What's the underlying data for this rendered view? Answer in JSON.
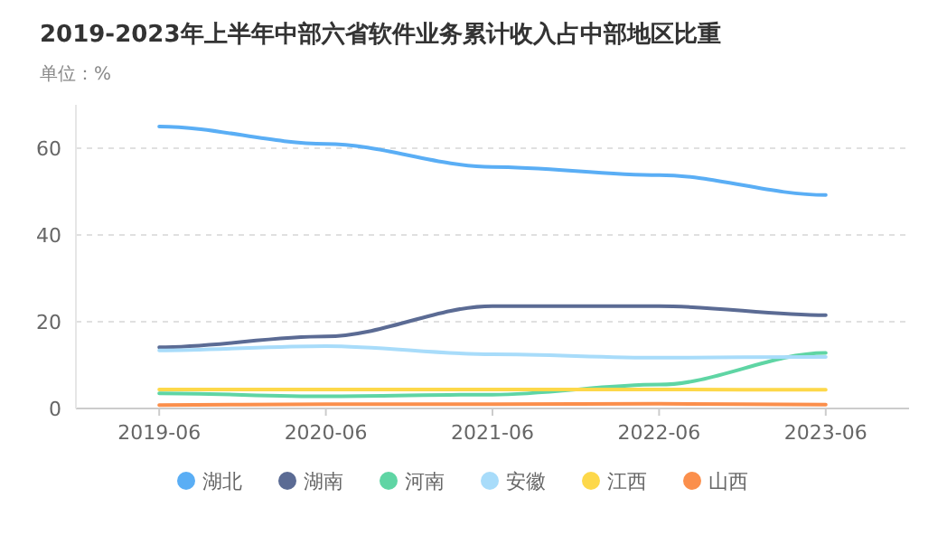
{
  "chart_data": {
    "type": "line",
    "title": "2019-2023年上半年中部六省软件业务累计收入占中部地区比重",
    "subtitle": "单位：%",
    "categories": [
      "2019-06",
      "2020-06",
      "2021-06",
      "2022-06",
      "2023-06"
    ],
    "series": [
      {
        "name": "湖北",
        "color": "#5aaef5",
        "values": [
          65,
          61,
          55.7,
          53.8,
          49.2
        ]
      },
      {
        "name": "湖南",
        "color": "#5b6b94",
        "values": [
          14.1,
          16.6,
          23.6,
          23.6,
          21.5
        ]
      },
      {
        "name": "河南",
        "color": "#5fd5a4",
        "values": [
          3.5,
          2.8,
          3.2,
          5.5,
          12.8
        ]
      },
      {
        "name": "安徽",
        "color": "#a8dcfa",
        "values": [
          13.4,
          14.4,
          12.5,
          11.7,
          11.9
        ]
      },
      {
        "name": "江西",
        "color": "#fdd84a",
        "values": [
          4.4,
          4.4,
          4.4,
          4.4,
          4.3
        ]
      },
      {
        "name": "山西",
        "color": "#fb8f4c",
        "values": [
          0.8,
          1,
          1,
          1.1,
          0.9
        ]
      }
    ],
    "ylim": [
      0,
      70
    ],
    "yticks": [
      0,
      20,
      40,
      60
    ],
    "grid": "y",
    "legend": "bottom",
    "marker": "none",
    "line_style": "solid"
  }
}
